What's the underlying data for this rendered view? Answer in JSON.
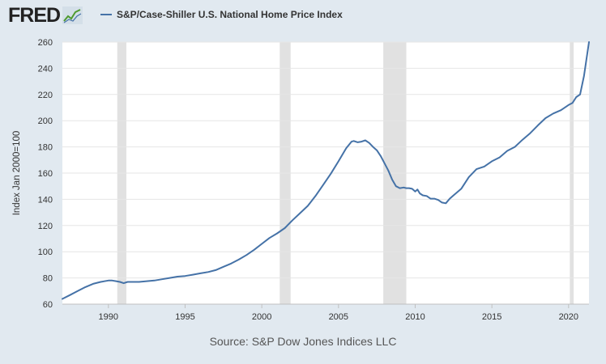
{
  "brand": {
    "logo_text": "FRED"
  },
  "chart_data": {
    "type": "line",
    "title": "S&P/Case-Shiller U.S. National Home Price Index",
    "xlabel": "",
    "ylabel": "Index Jan 2000=100",
    "xlim": [
      1987.0,
      2021.33
    ],
    "ylim": [
      60,
      260
    ],
    "x_ticks": [
      1990,
      1995,
      2000,
      2005,
      2010,
      2015,
      2020
    ],
    "y_ticks": [
      60,
      80,
      100,
      120,
      140,
      160,
      180,
      200,
      220,
      240,
      260
    ],
    "grid": "horizontal",
    "legend_position": "top-left",
    "colors": {
      "series": "#4572a7",
      "recession": "#e1e1e1",
      "grid": "#e6e6e6",
      "background": "#e1e9f0",
      "plot_background": "#ffffff"
    },
    "recessions": [
      [
        1990.58,
        1991.17
      ],
      [
        2001.17,
        2001.88
      ],
      [
        2007.92,
        2009.42
      ],
      [
        2020.08,
        2020.33
      ]
    ],
    "series": [
      {
        "name": "S&P/Case-Shiller U.S. National Home Price Index",
        "x": [
          1987.0,
          1987.5,
          1988.0,
          1988.5,
          1989.0,
          1989.5,
          1990.0,
          1990.25,
          1990.5,
          1990.75,
          1991.0,
          1991.25,
          1991.5,
          1991.75,
          1992.0,
          1992.5,
          1993.0,
          1993.5,
          1994.0,
          1994.5,
          1995.0,
          1995.5,
          1996.0,
          1996.5,
          1997.0,
          1997.5,
          1998.0,
          1998.5,
          1999.0,
          1999.5,
          2000.0,
          2000.5,
          2001.0,
          2001.5,
          2002.0,
          2002.5,
          2003.0,
          2003.5,
          2004.0,
          2004.5,
          2005.0,
          2005.5,
          2005.85,
          2006.0,
          2006.25,
          2006.5,
          2006.75,
          2007.0,
          2007.25,
          2007.5,
          2007.75,
          2008.0,
          2008.25,
          2008.5,
          2008.75,
          2009.0,
          2009.25,
          2009.42,
          2009.6,
          2009.8,
          2010.0,
          2010.15,
          2010.3,
          2010.5,
          2010.75,
          2011.0,
          2011.25,
          2011.5,
          2011.75,
          2012.0,
          2012.25,
          2012.5,
          2013.0,
          2013.5,
          2014.0,
          2014.5,
          2015.0,
          2015.5,
          2016.0,
          2016.5,
          2017.0,
          2017.5,
          2018.0,
          2018.5,
          2019.0,
          2019.5,
          2020.0,
          2020.25,
          2020.5,
          2020.75,
          2021.0,
          2021.33
        ],
        "values": [
          64,
          67,
          70,
          73,
          75.5,
          77,
          78,
          78,
          77.5,
          77,
          76,
          77,
          77,
          77,
          77,
          77.5,
          78,
          79,
          80,
          81,
          81.5,
          82.5,
          83.5,
          84.5,
          86,
          88.5,
          91,
          94,
          97.5,
          101.5,
          106,
          110.5,
          114,
          118,
          124,
          129.5,
          135,
          142.5,
          151,
          159.5,
          169,
          179,
          184,
          184.5,
          183.5,
          184,
          185,
          183,
          180,
          177.5,
          173,
          167.5,
          162,
          155,
          150,
          148.5,
          149,
          148.5,
          148.5,
          148,
          146,
          147.5,
          144.5,
          143,
          142.5,
          140.5,
          140.5,
          139.5,
          137.5,
          137,
          140.5,
          143,
          148,
          157,
          163,
          165,
          169,
          172,
          177,
          180,
          185.5,
          190.5,
          196.5,
          202,
          205.5,
          208,
          212,
          213.5,
          218,
          220,
          234,
          260
        ]
      }
    ]
  },
  "footer": {
    "source": "Source: S&P Dow Jones Indices LLC"
  }
}
